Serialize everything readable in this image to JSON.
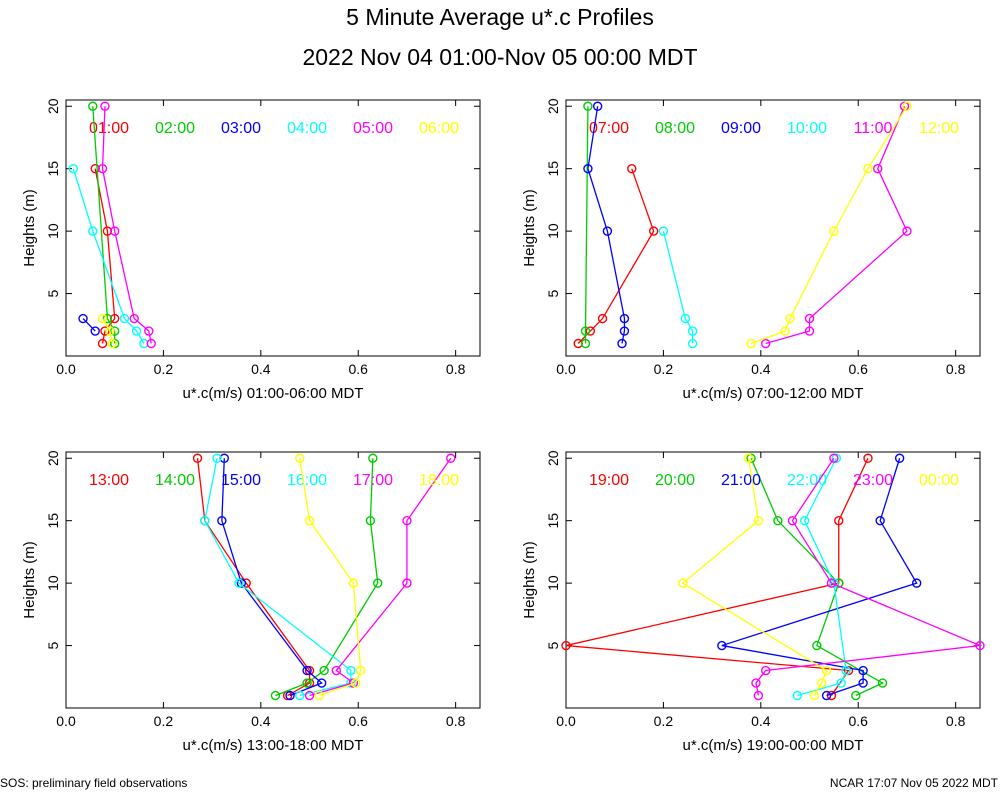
{
  "title": "5 Minute Average u*.c Profiles",
  "subtitle": "2022 Nov 04 01:00-Nov 05 00:00 MDT",
  "footer_left": "SOS: preliminary field observations",
  "footer_right": "NCAR 17:07 Nov 05 2022 MDT",
  "colors": [
    "#ff0000",
    "#00cc00",
    "#0000ff",
    "#00ffff",
    "#ff00ff",
    "#ffff00"
  ],
  "chart_data": [
    {
      "type": "line",
      "xlabel": "u*.c(m/s) 01:00-06:00 MDT",
      "ylabel": "Heights (m)",
      "xlim": [
        0,
        0.85
      ],
      "ylim": [
        0,
        20.5
      ],
      "xticks": [
        "0.0",
        "0.2",
        "0.4",
        "0.6",
        "0.8"
      ],
      "yticks": [
        "5",
        "10",
        "15",
        "20"
      ],
      "series": [
        {
          "name": "01:00",
          "points": [
            [
              0.075,
              1
            ],
            [
              0.08,
              2
            ],
            [
              0.1,
              3
            ],
            [
              0.085,
              10
            ],
            [
              0.06,
              15
            ]
          ]
        },
        {
          "name": "02:00",
          "points": [
            [
              0.1,
              1
            ],
            [
              0.1,
              2
            ],
            [
              0.085,
              3
            ],
            [
              0.055,
              20
            ]
          ]
        },
        {
          "name": "03:00",
          "points": [
            [
              0.06,
              2
            ],
            [
              0.035,
              3
            ]
          ]
        },
        {
          "name": "04:00",
          "points": [
            [
              0.16,
              1
            ],
            [
              0.145,
              2
            ],
            [
              0.12,
              3
            ],
            [
              0.055,
              10
            ],
            [
              0.015,
              15
            ]
          ]
        },
        {
          "name": "05:00",
          "points": [
            [
              0.175,
              1
            ],
            [
              0.17,
              2
            ],
            [
              0.14,
              3
            ],
            [
              0.1,
              10
            ],
            [
              0.075,
              15
            ],
            [
              0.08,
              20
            ]
          ]
        },
        {
          "name": "06:00",
          "points": [
            [
              0.095,
              1
            ],
            [
              0.09,
              2
            ],
            [
              0.075,
              3
            ]
          ]
        }
      ]
    },
    {
      "type": "line",
      "xlabel": "u*.c(m/s) 07:00-12:00 MDT",
      "ylabel": "Heights (m)",
      "xlim": [
        0,
        0.85
      ],
      "ylim": [
        0,
        20.5
      ],
      "xticks": [
        "0.0",
        "0.2",
        "0.4",
        "0.6",
        "0.8"
      ],
      "yticks": [
        "5",
        "10",
        "15",
        "20"
      ],
      "series": [
        {
          "name": "07:00",
          "points": [
            [
              0.025,
              1
            ],
            [
              0.05,
              2
            ],
            [
              0.075,
              3
            ],
            [
              0.18,
              10
            ],
            [
              0.135,
              15
            ]
          ]
        },
        {
          "name": "08:00",
          "points": [
            [
              0.04,
              1
            ],
            [
              0.04,
              2
            ],
            [
              0.045,
              20
            ]
          ]
        },
        {
          "name": "09:00",
          "points": [
            [
              0.115,
              1
            ],
            [
              0.12,
              2
            ],
            [
              0.12,
              3
            ],
            [
              0.085,
              10
            ],
            [
              0.045,
              15
            ],
            [
              0.065,
              20
            ]
          ]
        },
        {
          "name": "10:00",
          "points": [
            [
              0.26,
              1
            ],
            [
              0.26,
              2
            ],
            [
              0.245,
              3
            ],
            [
              0.2,
              10
            ]
          ]
        },
        {
          "name": "11:00",
          "points": [
            [
              0.41,
              1
            ],
            [
              0.5,
              2
            ],
            [
              0.5,
              3
            ],
            [
              0.7,
              10
            ],
            [
              0.64,
              15
            ],
            [
              0.695,
              20
            ]
          ]
        },
        {
          "name": "12:00",
          "points": [
            [
              0.38,
              1
            ],
            [
              0.45,
              2
            ],
            [
              0.46,
              3
            ],
            [
              0.55,
              10
            ],
            [
              0.62,
              15
            ],
            [
              0.7,
              20
            ]
          ]
        }
      ]
    },
    {
      "type": "line",
      "xlabel": "u*.c(m/s) 13:00-18:00 MDT",
      "ylabel": "Heights (m)",
      "xlim": [
        0,
        0.85
      ],
      "ylim": [
        0,
        20.5
      ],
      "xticks": [
        "0.0",
        "0.2",
        "0.4",
        "0.6",
        "0.8"
      ],
      "yticks": [
        "5",
        "10",
        "15",
        "20"
      ],
      "series": [
        {
          "name": "13:00",
          "points": [
            [
              0.455,
              1
            ],
            [
              0.5,
              2
            ],
            [
              0.5,
              3
            ],
            [
              0.37,
              10
            ],
            [
              0.285,
              15
            ],
            [
              0.27,
              20
            ]
          ]
        },
        {
          "name": "14:00",
          "points": [
            [
              0.43,
              1
            ],
            [
              0.495,
              2
            ],
            [
              0.53,
              3
            ],
            [
              0.64,
              10
            ],
            [
              0.625,
              15
            ],
            [
              0.63,
              20
            ]
          ]
        },
        {
          "name": "15:00",
          "points": [
            [
              0.46,
              1
            ],
            [
              0.525,
              2
            ],
            [
              0.495,
              3
            ],
            [
              0.36,
              10
            ],
            [
              0.32,
              15
            ],
            [
              0.325,
              20
            ]
          ]
        },
        {
          "name": "16:00",
          "points": [
            [
              0.48,
              1
            ],
            [
              0.585,
              2
            ],
            [
              0.585,
              3
            ],
            [
              0.355,
              10
            ],
            [
              0.285,
              15
            ],
            [
              0.31,
              20
            ]
          ]
        },
        {
          "name": "17:00",
          "points": [
            [
              0.5,
              1
            ],
            [
              0.59,
              2
            ],
            [
              0.555,
              3
            ],
            [
              0.7,
              10
            ],
            [
              0.7,
              15
            ],
            [
              0.79,
              20
            ]
          ]
        },
        {
          "name": "18:00",
          "points": [
            [
              0.52,
              1
            ],
            [
              0.595,
              2
            ],
            [
              0.605,
              3
            ],
            [
              0.59,
              10
            ],
            [
              0.5,
              15
            ],
            [
              0.48,
              20
            ]
          ]
        }
      ]
    },
    {
      "type": "line",
      "xlabel": "u*.c(m/s) 19:00-00:00 MDT",
      "ylabel": "Heights (m)",
      "xlim": [
        0,
        0.85
      ],
      "ylim": [
        0,
        20.5
      ],
      "xticks": [
        "0.0",
        "0.2",
        "0.4",
        "0.6",
        "0.8"
      ],
      "yticks": [
        "5",
        "10",
        "15",
        "20"
      ],
      "series": [
        {
          "name": "19:00",
          "points": [
            [
              0.545,
              1
            ],
            [
              0.58,
              3
            ],
            [
              0.0,
              5
            ],
            [
              0.56,
              10
            ],
            [
              0.56,
              15
            ],
            [
              0.62,
              20
            ]
          ]
        },
        {
          "name": "20:00",
          "points": [
            [
              0.595,
              1
            ],
            [
              0.65,
              2
            ],
            [
              0.515,
              5
            ],
            [
              0.56,
              10
            ],
            [
              0.435,
              15
            ],
            [
              0.38,
              20
            ]
          ]
        },
        {
          "name": "21:00",
          "points": [
            [
              0.535,
              1
            ],
            [
              0.61,
              2
            ],
            [
              0.61,
              3
            ],
            [
              0.32,
              5
            ],
            [
              0.72,
              10
            ],
            [
              0.645,
              15
            ],
            [
              0.685,
              20
            ]
          ]
        },
        {
          "name": "22:00",
          "points": [
            [
              0.475,
              1
            ],
            [
              0.565,
              2
            ],
            [
              0.575,
              3
            ],
            [
              0.55,
              10
            ],
            [
              0.49,
              15
            ],
            [
              0.555,
              20
            ]
          ]
        },
        {
          "name": "23:00",
          "points": [
            [
              0.395,
              1
            ],
            [
              0.39,
              2
            ],
            [
              0.41,
              3
            ],
            [
              0.85,
              5
            ],
            [
              0.545,
              10
            ],
            [
              0.465,
              15
            ],
            [
              0.55,
              20
            ]
          ]
        },
        {
          "name": "00:00",
          "points": [
            [
              0.51,
              1
            ],
            [
              0.525,
              2
            ],
            [
              0.535,
              3
            ],
            [
              0.24,
              10
            ],
            [
              0.395,
              15
            ],
            [
              0.375,
              20
            ]
          ]
        }
      ]
    }
  ]
}
